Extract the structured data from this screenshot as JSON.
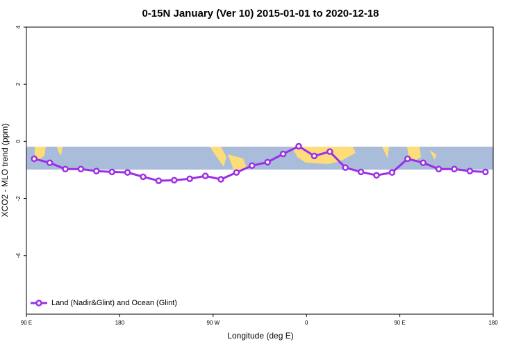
{
  "chart_data": {
    "type": "line",
    "title": "0-15N January (Ver 10)   2015-01-01 to 2020-12-18",
    "x_label": "Longitude (deg E)",
    "y_label": "XCO2 - MLO trend (ppm)",
    "x": [
      97.5,
      112.5,
      127.5,
      142.5,
      157.5,
      172.5,
      187.5,
      202.5,
      217.5,
      232.5,
      247.5,
      262.5,
      277.5,
      292.5,
      307.5,
      322.5,
      337.5,
      352.5,
      367.5,
      382.5,
      397.5,
      412.5,
      427.5,
      442.5,
      457.5,
      472.5,
      487.5,
      502.5,
      517.5,
      532.5
    ],
    "series": [
      {
        "name": "Land (Nadir&Glint) and Ocean (Glint)",
        "color": "#9b2fe6",
        "values": [
          -0.61,
          -0.75,
          -0.97,
          -0.97,
          -1.04,
          -1.07,
          -1.09,
          -1.24,
          -1.38,
          -1.36,
          -1.31,
          -1.21,
          -1.33,
          -1.09,
          -0.85,
          -0.73,
          -0.44,
          -0.17,
          -0.51,
          -0.36,
          -0.92,
          -1.07,
          -1.19,
          -1.09,
          -0.61,
          -0.75,
          -0.97,
          -0.97,
          -1.04,
          -1.07
        ]
      }
    ],
    "xlim": [
      90,
      540
    ],
    "xticks": [
      {
        "value": 90,
        "label": "90 E"
      },
      {
        "value": 180,
        "label": "180"
      },
      {
        "value": 270,
        "label": "90 W"
      },
      {
        "value": 360,
        "label": "0"
      },
      {
        "value": 450,
        "label": "90 E"
      },
      {
        "value": 540,
        "label": "180"
      }
    ],
    "ylim": [
      -6.05,
      4
    ],
    "yticks": [
      4,
      2,
      0,
      -2,
      -4
    ],
    "legend": "bottom-left"
  }
}
